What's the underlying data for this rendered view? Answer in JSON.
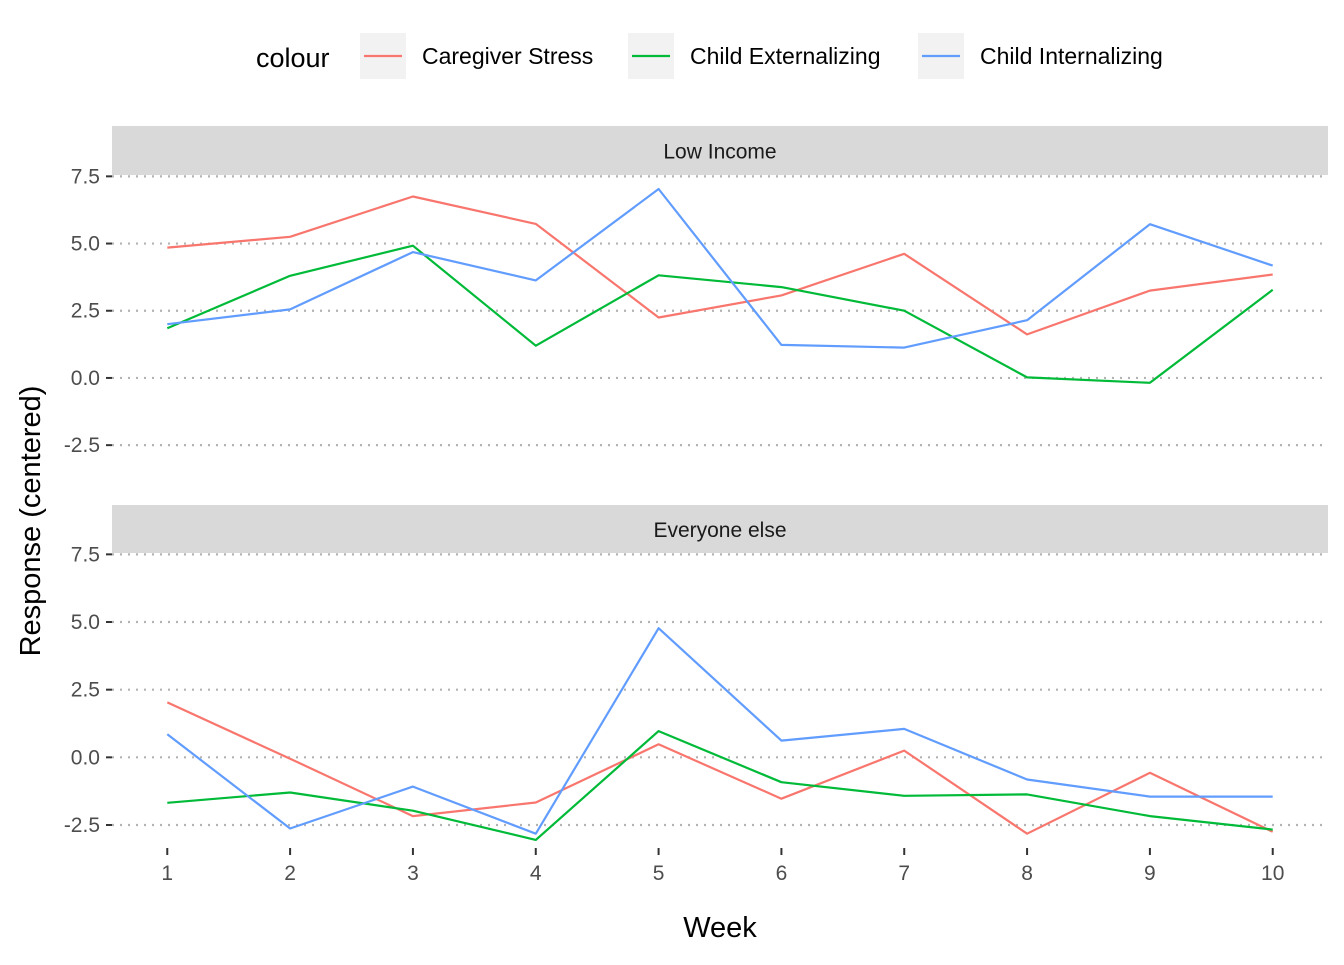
{
  "chart_data": {
    "type": "line",
    "facet_layout": "stacked-rows",
    "xlabel": "Week",
    "ylabel": "Response (centered)",
    "x_ticks": [
      1,
      2,
      3,
      4,
      5,
      6,
      7,
      8,
      9,
      10
    ],
    "y_ticks": [
      -2.5,
      0.0,
      2.5,
      5.0,
      7.5
    ],
    "y_tick_labels": [
      "-2.5",
      "0.0",
      "2.5",
      "5.0",
      "7.5"
    ],
    "xlim": [
      0.55,
      10.45
    ],
    "ylim": [
      -3.35,
      7.55
    ],
    "legend": {
      "title": "colour",
      "position": "top",
      "entries": [
        "Caregiver Stress",
        "Child Externalizing",
        "Child Internalizing"
      ]
    },
    "grid": {
      "major_y": "dotted",
      "major_x": "none"
    },
    "colors": {
      "Caregiver Stress": "#F8766D",
      "Child Externalizing": "#00BA38",
      "Child Internalizing": "#619CFF"
    },
    "panels": [
      {
        "label": "Low Income",
        "series": [
          {
            "name": "Caregiver Stress",
            "x": [
              1,
              2,
              3,
              4,
              5,
              6,
              7,
              8,
              9,
              10
            ],
            "values": [
              4.85,
              5.25,
              6.75,
              5.73,
              2.25,
              3.07,
              4.62,
              1.62,
              3.25,
              3.85
            ]
          },
          {
            "name": "Child Externalizing",
            "x": [
              1,
              2,
              3,
              4,
              5,
              6,
              7,
              8,
              9,
              10
            ],
            "values": [
              1.85,
              3.8,
              4.92,
              1.2,
              3.82,
              3.38,
              2.5,
              0.02,
              -0.18,
              3.28
            ]
          },
          {
            "name": "Child Internalizing",
            "x": [
              1,
              2,
              3,
              4,
              5,
              6,
              7,
              8,
              9,
              10
            ],
            "values": [
              2.0,
              2.55,
              4.68,
              3.63,
              7.03,
              1.23,
              1.13,
              2.15,
              5.72,
              4.18
            ]
          }
        ]
      },
      {
        "label": "Everyone else",
        "series": [
          {
            "name": "Caregiver Stress",
            "x": [
              1,
              2,
              3,
              4,
              5,
              6,
              7,
              8,
              9,
              10
            ],
            "values": [
              2.03,
              -0.05,
              -2.17,
              -1.67,
              0.48,
              -1.53,
              0.25,
              -2.82,
              -0.57,
              -2.75
            ]
          },
          {
            "name": "Child Externalizing",
            "x": [
              1,
              2,
              3,
              4,
              5,
              6,
              7,
              8,
              9,
              10
            ],
            "values": [
              -1.68,
              -1.3,
              -1.97,
              -3.05,
              0.97,
              -0.92,
              -1.42,
              -1.37,
              -2.17,
              -2.67
            ]
          },
          {
            "name": "Child Internalizing",
            "x": [
              1,
              2,
              3,
              4,
              5,
              6,
              7,
              8,
              9,
              10
            ],
            "values": [
              0.85,
              -2.63,
              -1.08,
              -2.82,
              4.77,
              0.62,
              1.05,
              -0.82,
              -1.45,
              -1.45
            ]
          }
        ]
      }
    ]
  }
}
